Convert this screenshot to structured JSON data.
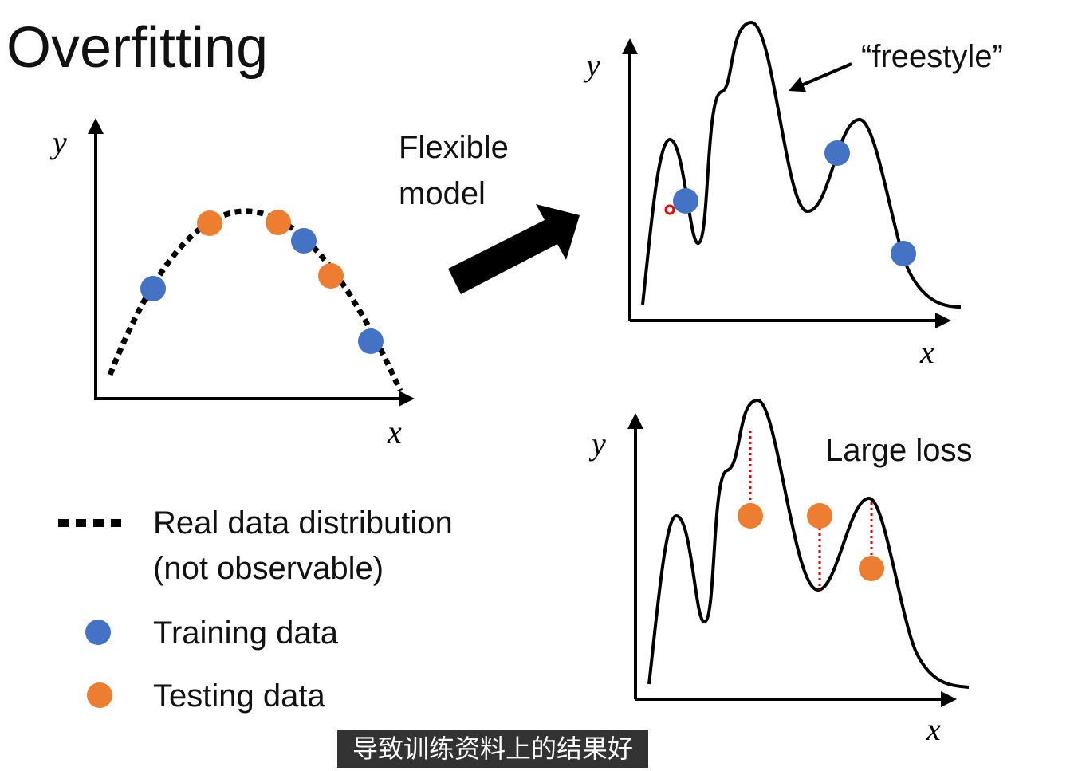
{
  "title": "Overfitting",
  "left_plot": {
    "y_label": "y",
    "x_label": "x"
  },
  "arrow_label": [
    "Flexible",
    "model"
  ],
  "top_plot": {
    "y_label": "y",
    "x_label": "x",
    "annotation": "“freestyle”"
  },
  "bottom_plot": {
    "y_label": "y",
    "x_label": "x",
    "annotation": "Large loss"
  },
  "legend": {
    "real": [
      "Real data distribution",
      "(not observable)"
    ],
    "training": "Training data",
    "testing": "Testing data"
  },
  "subtitle": "导致训练资料上的结果好"
}
